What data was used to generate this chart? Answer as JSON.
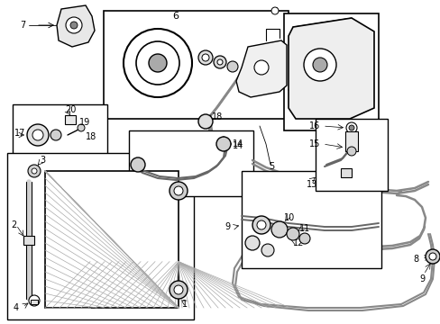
{
  "bg_color": "#ffffff",
  "line_color": "#000000",
  "fig_width": 4.89,
  "fig_height": 3.6,
  "dpi": 100,
  "label_fontsize": 7
}
